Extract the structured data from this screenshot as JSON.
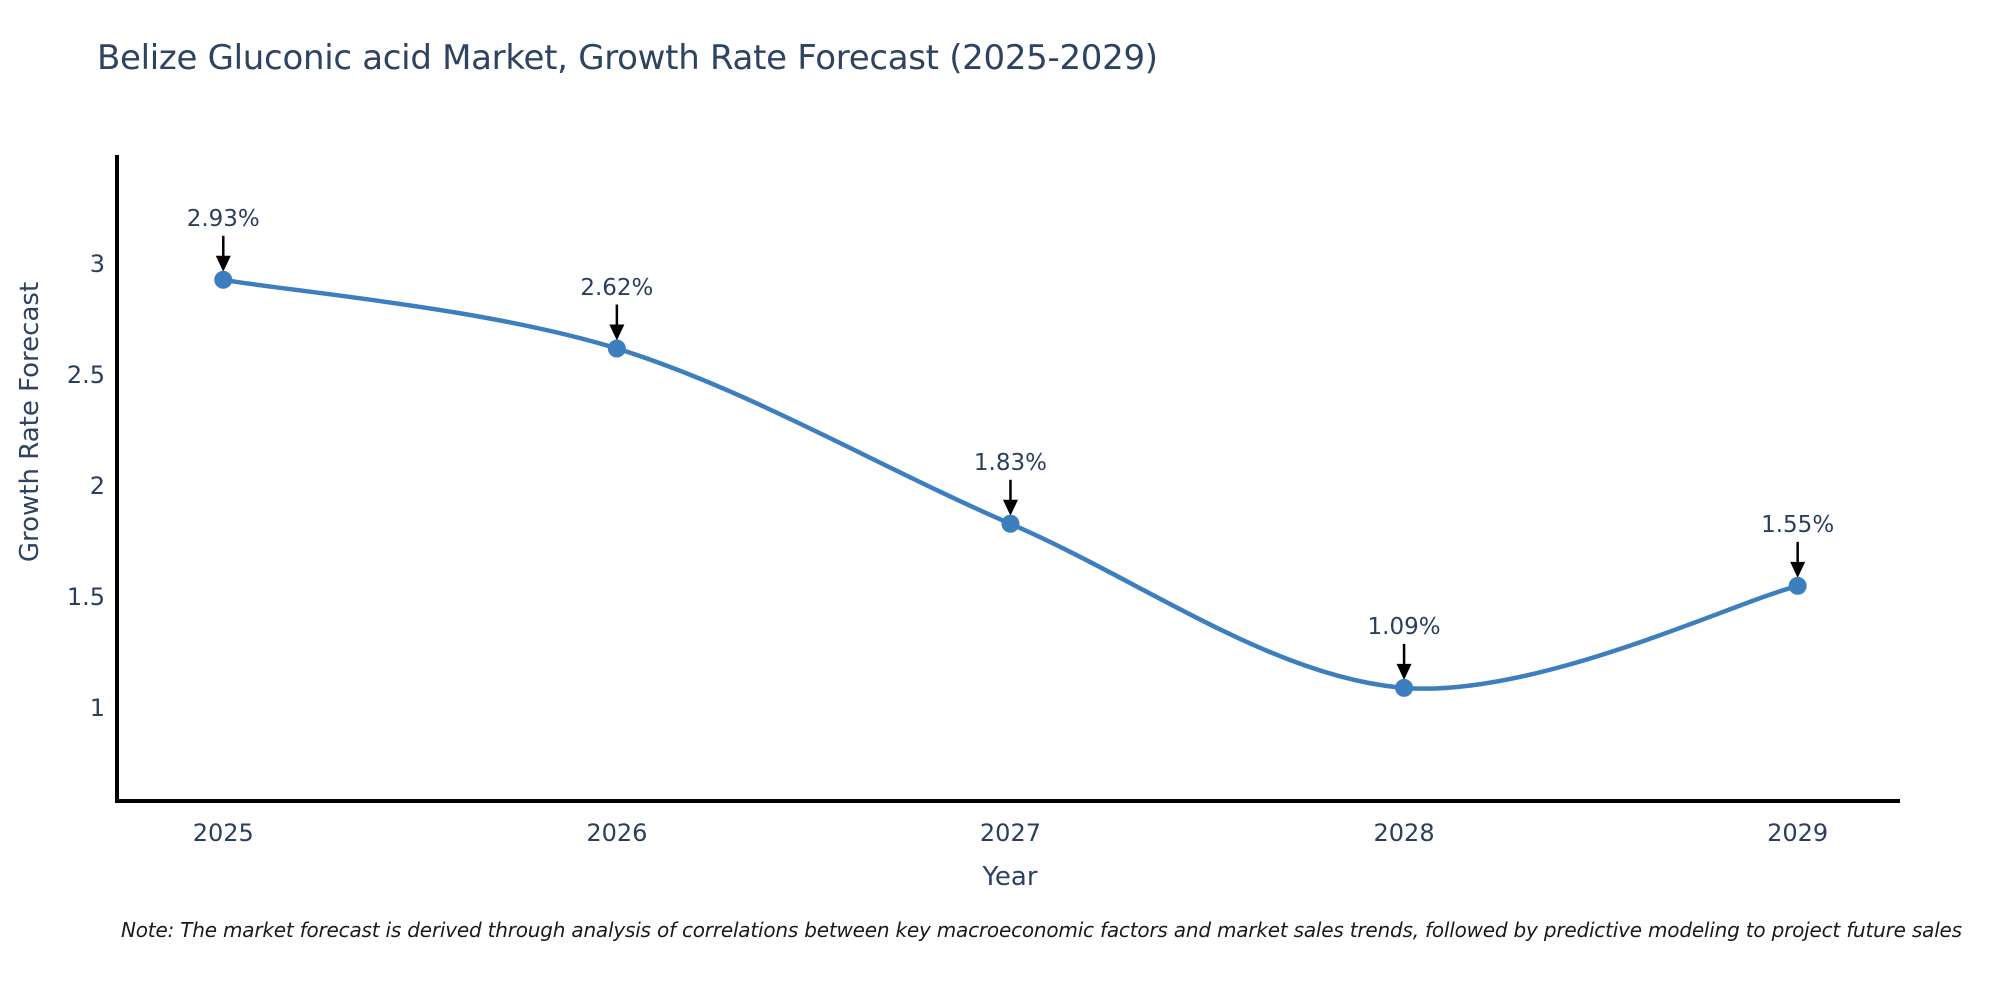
{
  "title": "Belize Gluconic acid Market, Growth Rate Forecast (2025-2029)",
  "note": "Note: The market forecast is derived through analysis of correlations between key macroeconomic factors and market sales trends, followed by predictive modeling to project future sales",
  "colors": {
    "accent": "#3d7ebf",
    "text": "#2a3f5f",
    "axis": "#000000",
    "arrow": "#000000",
    "background": "#ffffff"
  },
  "chart_data": {
    "type": "line",
    "title": "Belize Gluconic acid Market, Growth Rate Forecast (2025-2029)",
    "xlabel": "Year",
    "ylabel": "Growth Rate Forecast",
    "x": [
      2025,
      2026,
      2027,
      2028,
      2029
    ],
    "y": [
      2.93,
      2.62,
      1.83,
      1.09,
      1.55
    ],
    "point_labels": [
      "2.93%",
      "2.62%",
      "1.83%",
      "1.09%",
      "1.55%"
    ],
    "xtick_labels": [
      "2025",
      "2026",
      "2027",
      "2028",
      "2029"
    ],
    "yticks": [
      1,
      1.5,
      2,
      2.5,
      3
    ],
    "ytick_labels": [
      "1",
      "1.5",
      "2",
      "2.5",
      "3"
    ],
    "xlim": [
      2024.73,
      2029.26
    ],
    "ylim": [
      0.58,
      3.47
    ],
    "line_shape": "spline",
    "line_color": "#3d7ebf",
    "marker_color": "#3d7ebf",
    "grid": false,
    "legend": false
  }
}
